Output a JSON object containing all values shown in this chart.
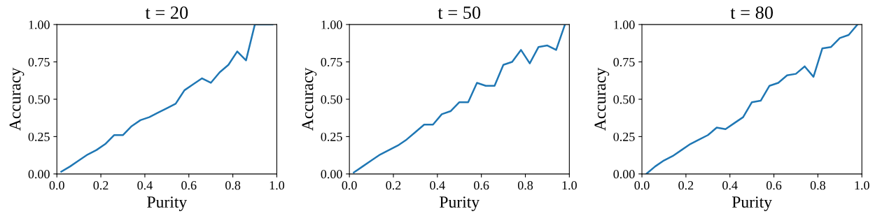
{
  "chart_data": [
    {
      "type": "line",
      "title": "t = 20",
      "xlabel": "Purity",
      "ylabel": "Accuracy",
      "x": [
        0.02,
        0.06,
        0.1,
        0.14,
        0.18,
        0.22,
        0.26,
        0.3,
        0.34,
        0.38,
        0.42,
        0.46,
        0.5,
        0.54,
        0.58,
        0.62,
        0.66,
        0.7,
        0.74,
        0.78,
        0.82,
        0.86,
        0.9,
        0.94,
        0.98
      ],
      "series": [
        {
          "color": "#1f77b4",
          "values": [
            0.015,
            0.05,
            0.09,
            0.13,
            0.16,
            0.2,
            0.26,
            0.26,
            0.32,
            0.36,
            0.38,
            0.41,
            0.44,
            0.47,
            0.56,
            0.6,
            0.64,
            0.61,
            0.68,
            0.73,
            0.82,
            0.76,
            1.0,
            1.0,
            1.0
          ]
        }
      ],
      "xlim": [
        0,
        1
      ],
      "ylim": [
        0,
        1
      ],
      "xticks": [
        {
          "value": 0,
          "label": "0.0"
        },
        {
          "value": 0.2,
          "label": "0.2"
        },
        {
          "value": 0.4,
          "label": "0.4"
        },
        {
          "value": 0.6,
          "label": "0.6"
        },
        {
          "value": 0.8,
          "label": "0.8"
        },
        {
          "value": 1,
          "label": "1.0"
        }
      ],
      "yticks": [
        {
          "value": 0,
          "label": "0.00"
        },
        {
          "value": 0.25,
          "label": "0.25"
        },
        {
          "value": 0.5,
          "label": "0.50"
        },
        {
          "value": 0.75,
          "label": "0.75"
        },
        {
          "value": 1,
          "label": "1.00"
        }
      ],
      "grid": false,
      "legend": false
    },
    {
      "type": "line",
      "title": "t = 50",
      "xlabel": "Purity",
      "ylabel": "Accuracy",
      "x": [
        0.02,
        0.06,
        0.1,
        0.14,
        0.18,
        0.22,
        0.26,
        0.3,
        0.34,
        0.38,
        0.42,
        0.46,
        0.5,
        0.54,
        0.58,
        0.62,
        0.66,
        0.7,
        0.74,
        0.78,
        0.82,
        0.86,
        0.9,
        0.94,
        0.98
      ],
      "series": [
        {
          "color": "#1f77b4",
          "values": [
            0.01,
            0.05,
            0.09,
            0.13,
            0.16,
            0.19,
            0.23,
            0.28,
            0.33,
            0.33,
            0.4,
            0.42,
            0.48,
            0.48,
            0.61,
            0.59,
            0.59,
            0.73,
            0.75,
            0.83,
            0.74,
            0.85,
            0.86,
            0.83,
            1.0
          ]
        }
      ],
      "xlim": [
        0,
        1
      ],
      "ylim": [
        0,
        1
      ],
      "xticks": [
        {
          "value": 0,
          "label": "0.0"
        },
        {
          "value": 0.2,
          "label": "0.2"
        },
        {
          "value": 0.4,
          "label": "0.4"
        },
        {
          "value": 0.6,
          "label": "0.6"
        },
        {
          "value": 0.8,
          "label": "0.8"
        },
        {
          "value": 1,
          "label": "1.0"
        }
      ],
      "yticks": [
        {
          "value": 0,
          "label": "0.00"
        },
        {
          "value": 0.25,
          "label": "0.25"
        },
        {
          "value": 0.5,
          "label": "0.50"
        },
        {
          "value": 0.75,
          "label": "0.75"
        },
        {
          "value": 1,
          "label": "1.00"
        }
      ],
      "grid": false,
      "legend": false
    },
    {
      "type": "line",
      "title": "t = 80",
      "xlabel": "Purity",
      "ylabel": "Accuracy",
      "x": [
        0.02,
        0.06,
        0.1,
        0.14,
        0.18,
        0.22,
        0.26,
        0.3,
        0.34,
        0.38,
        0.42,
        0.46,
        0.5,
        0.54,
        0.58,
        0.62,
        0.66,
        0.7,
        0.74,
        0.78,
        0.82,
        0.86,
        0.9,
        0.94,
        0.98
      ],
      "series": [
        {
          "color": "#1f77b4",
          "values": [
            0.0,
            0.05,
            0.09,
            0.12,
            0.16,
            0.2,
            0.23,
            0.26,
            0.31,
            0.3,
            0.34,
            0.38,
            0.48,
            0.49,
            0.59,
            0.61,
            0.66,
            0.67,
            0.72,
            0.65,
            0.84,
            0.85,
            0.91,
            0.93,
            1.0
          ]
        }
      ],
      "xlim": [
        0,
        1
      ],
      "ylim": [
        0,
        1
      ],
      "xticks": [
        {
          "value": 0,
          "label": "0.0"
        },
        {
          "value": 0.2,
          "label": "0.2"
        },
        {
          "value": 0.4,
          "label": "0.4"
        },
        {
          "value": 0.6,
          "label": "0.6"
        },
        {
          "value": 0.8,
          "label": "0.8"
        },
        {
          "value": 1,
          "label": "1.0"
        }
      ],
      "yticks": [
        {
          "value": 0,
          "label": "0.00"
        },
        {
          "value": 0.25,
          "label": "0.25"
        },
        {
          "value": 0.5,
          "label": "0.50"
        },
        {
          "value": 0.75,
          "label": "0.75"
        },
        {
          "value": 1,
          "label": "1.00"
        }
      ],
      "grid": false,
      "legend": false
    }
  ]
}
